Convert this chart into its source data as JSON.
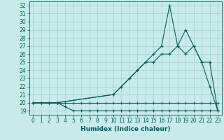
{
  "title": "",
  "xlabel": "Humidex (Indice chaleur)",
  "ylabel": "",
  "xlim": [
    -0.5,
    23.5
  ],
  "ylim": [
    18.5,
    32.5
  ],
  "bg_color": "#c8eae8",
  "grid_color": "#a0d0cc",
  "line_color": "#006060",
  "lines": [
    {
      "x": [
        0,
        1,
        2,
        3,
        4,
        5,
        6,
        7,
        8,
        9,
        10,
        11,
        12,
        13,
        14,
        15,
        16,
        17,
        18,
        19,
        20,
        21,
        22,
        23
      ],
      "y": [
        20,
        20,
        20,
        20,
        19.5,
        19,
        19,
        19,
        19,
        19,
        19,
        19,
        19,
        19,
        19,
        19,
        19,
        19,
        19,
        19,
        19,
        19,
        19,
        19
      ]
    },
    {
      "x": [
        0,
        1,
        2,
        3,
        4,
        5,
        6,
        7,
        8,
        9,
        10,
        11,
        12,
        13,
        14,
        15,
        16,
        17,
        18,
        19,
        20,
        21,
        22,
        23
      ],
      "y": [
        20,
        20,
        20,
        20,
        20,
        20,
        20,
        20,
        20,
        20,
        20,
        20,
        20,
        20,
        20,
        20,
        20,
        20,
        20,
        20,
        20,
        20,
        20,
        20
      ]
    },
    {
      "x": [
        0,
        1,
        2,
        3,
        10,
        11,
        12,
        13,
        14,
        15,
        16,
        17,
        18,
        19,
        20,
        21,
        22,
        23
      ],
      "y": [
        20,
        20,
        20,
        20,
        21,
        22,
        23,
        24,
        25,
        25,
        26,
        26,
        27,
        29,
        27,
        25,
        22,
        19
      ]
    },
    {
      "x": [
        0,
        1,
        2,
        3,
        10,
        11,
        12,
        13,
        14,
        15,
        16,
        17,
        18,
        19,
        20,
        21,
        22,
        23
      ],
      "y": [
        20,
        20,
        20,
        20,
        21,
        22,
        23,
        24,
        25,
        26,
        27,
        32,
        27,
        26,
        27,
        25,
        25,
        19
      ]
    }
  ],
  "xticks": [
    0,
    1,
    2,
    3,
    4,
    5,
    6,
    7,
    8,
    9,
    10,
    11,
    12,
    13,
    14,
    15,
    16,
    17,
    18,
    19,
    20,
    21,
    22,
    23
  ],
  "yticks": [
    19,
    20,
    21,
    22,
    23,
    24,
    25,
    26,
    27,
    28,
    29,
    30,
    31,
    32
  ],
  "tick_fontsize": 5.5,
  "label_fontsize": 6.5
}
